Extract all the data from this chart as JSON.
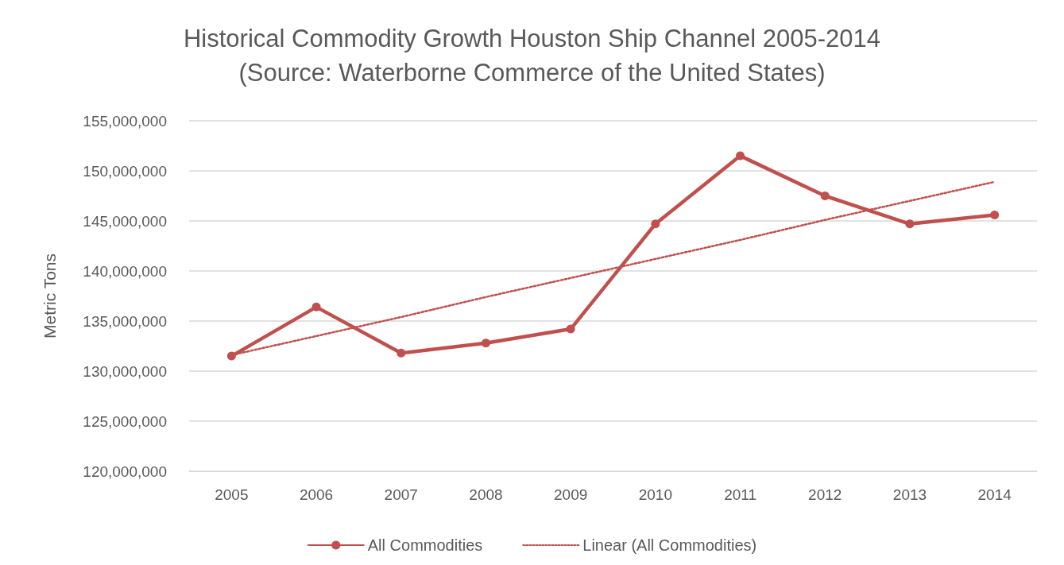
{
  "chart_data": {
    "type": "line",
    "title": "Historical Commodity Growth Houston Ship Channel 2005-2014",
    "subtitle": "(Source: Waterborne Commerce of the United States)",
    "ylabel": "Metric Tons",
    "categories": [
      "2005",
      "2006",
      "2007",
      "2008",
      "2009",
      "2010",
      "2011",
      "2012",
      "2013",
      "2014"
    ],
    "series": [
      {
        "name": "All Commodities",
        "color": "#c0504d",
        "marker": "circle",
        "line_style": "solid",
        "values": [
          131500000,
          136400000,
          131800000,
          132800000,
          134200000,
          144700000,
          151500000,
          147500000,
          144700000,
          145600000
        ]
      },
      {
        "name": "Linear (All Commodities)",
        "color": "#c0504d",
        "marker": "none",
        "line_style": "dotted",
        "values": [
          131600000,
          133500000,
          135400000,
          137400000,
          139300000,
          141200000,
          143100000,
          145100000,
          147000000,
          148900000
        ]
      }
    ],
    "ylim": [
      120000000,
      155000000
    ],
    "yticks": [
      {
        "value": 120000000,
        "label": "120,000,000"
      },
      {
        "value": 125000000,
        "label": "125,000,000"
      },
      {
        "value": 130000000,
        "label": "130,000,000"
      },
      {
        "value": 135000000,
        "label": "135,000,000"
      },
      {
        "value": 140000000,
        "label": "140,000,000"
      },
      {
        "value": 145000000,
        "label": "145,000,000"
      },
      {
        "value": 150000000,
        "label": "150,000,000"
      },
      {
        "value": 155000000,
        "label": "155,000,000"
      }
    ],
    "grid": "y",
    "legend": "bottom"
  }
}
